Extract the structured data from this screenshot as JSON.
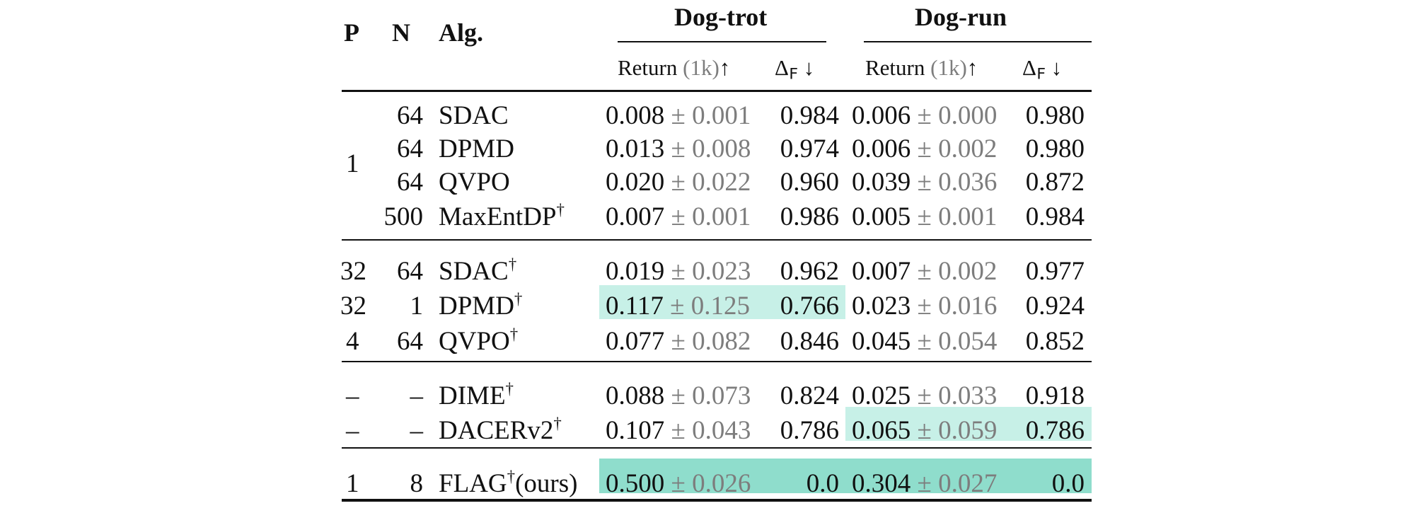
{
  "table": {
    "headers": {
      "p": "P",
      "n": "N",
      "alg": "Alg.",
      "groups": [
        {
          "name": "Dog-trot",
          "return_label": "Return",
          "return_unit": "(1k)",
          "return_arrow": "↑",
          "delta_label": "Δ",
          "delta_sub": "F",
          "delta_arrow": "↓"
        },
        {
          "name": "Dog-run",
          "return_label": "Return",
          "return_unit": "(1k)",
          "return_arrow": "↑",
          "delta_label": "Δ",
          "delta_sub": "F",
          "delta_arrow": "↓"
        }
      ]
    },
    "pm": "±",
    "dagger": "†",
    "rows": [
      {
        "p": "1",
        "n": "64",
        "alg": "SDAC",
        "dagger": false,
        "suffix": "",
        "trot_mean": "0.008",
        "trot_std": "0.001",
        "trot_delta": "0.984",
        "run_mean": "0.006",
        "run_std": "0.000",
        "run_delta": "0.980"
      },
      {
        "p": "",
        "n": "64",
        "alg": "DPMD",
        "dagger": false,
        "suffix": "",
        "trot_mean": "0.013",
        "trot_std": "0.008",
        "trot_delta": "0.974",
        "run_mean": "0.006",
        "run_std": "0.002",
        "run_delta": "0.980"
      },
      {
        "p": "",
        "n": "64",
        "alg": "QVPO",
        "dagger": false,
        "suffix": "",
        "trot_mean": "0.020",
        "trot_std": "0.022",
        "trot_delta": "0.960",
        "run_mean": "0.039",
        "run_std": "0.036",
        "run_delta": "0.872"
      },
      {
        "p": "",
        "n": "500",
        "alg": "MaxEntDP",
        "dagger": true,
        "suffix": "",
        "trot_mean": "0.007",
        "trot_std": "0.001",
        "trot_delta": "0.986",
        "run_mean": "0.005",
        "run_std": "0.001",
        "run_delta": "0.984"
      },
      {
        "p": "32",
        "n": "64",
        "alg": "SDAC",
        "dagger": true,
        "suffix": "",
        "trot_mean": "0.019",
        "trot_std": "0.023",
        "trot_delta": "0.962",
        "run_mean": "0.007",
        "run_std": "0.002",
        "run_delta": "0.977"
      },
      {
        "p": "32",
        "n": "1",
        "alg": "DPMD",
        "dagger": true,
        "suffix": "",
        "trot_mean": "0.117",
        "trot_std": "0.125",
        "trot_delta": "0.766",
        "run_mean": "0.023",
        "run_std": "0.016",
        "run_delta": "0.924"
      },
      {
        "p": "4",
        "n": "64",
        "alg": "QVPO",
        "dagger": true,
        "suffix": "",
        "trot_mean": "0.077",
        "trot_std": "0.082",
        "trot_delta": "0.846",
        "run_mean": "0.045",
        "run_std": "0.054",
        "run_delta": "0.852"
      },
      {
        "p": "–",
        "n": "–",
        "alg": "DIME",
        "dagger": true,
        "suffix": "",
        "trot_mean": "0.088",
        "trot_std": "0.073",
        "trot_delta": "0.824",
        "run_mean": "0.025",
        "run_std": "0.033",
        "run_delta": "0.918"
      },
      {
        "p": "–",
        "n": "–",
        "alg": "DACERv2",
        "dagger": true,
        "suffix": "",
        "trot_mean": "0.107",
        "trot_std": "0.043",
        "trot_delta": "0.786",
        "run_mean": "0.065",
        "run_std": "0.059",
        "run_delta": "0.786"
      },
      {
        "p": "1",
        "n": "8",
        "alg": "FLAG",
        "dagger": true,
        "suffix": "(ours)",
        "trot_mean": "0.500",
        "trot_std": "0.026",
        "trot_delta": "0.0",
        "run_mean": "0.304",
        "run_std": "0.027",
        "run_delta": "0.0"
      }
    ],
    "colors": {
      "highlight_light": "#c7f0e7",
      "highlight_dark": "#8fddcc",
      "std_grey": "#7d7d7d"
    }
  }
}
